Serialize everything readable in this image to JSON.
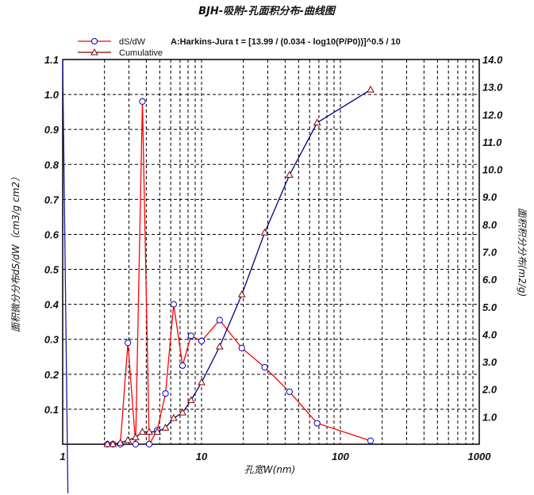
{
  "chart_data": {
    "type": "line",
    "title": "BJH-吸附-孔面积分布-曲线图",
    "annotation": "A:Harkins-Jura  t = [13.99 / (0.034 - log10(P/P0))]^0.5 / 10",
    "xlabel": "孔宽W(nm)",
    "ylabel_left": "面积微分分布dS/dW（cm3/g cm2）",
    "ylabel_right": "面积积分分布(m2/g)",
    "x_scale": "log",
    "xlim": [
      1,
      1000
    ],
    "ylim_left": [
      0,
      1.1
    ],
    "ylim_right": [
      0,
      14
    ],
    "x_ticks": [
      "1",
      "10",
      "100",
      "1000"
    ],
    "y_ticks_left": [
      "0.1",
      "0.2",
      "0.3",
      "0.4",
      "0.5",
      "0.6",
      "0.7",
      "0.8",
      "0.9",
      "1.0",
      "1.1"
    ],
    "y_ticks_right": [
      "1.0",
      "2.0",
      "3.0",
      "4.0",
      "5.0",
      "6.0",
      "7.0",
      "8.0",
      "9.0",
      "10.0",
      "11.0",
      "12.0",
      "13.0",
      "14.0"
    ],
    "grid": true,
    "legend_position": "top-left",
    "series": [
      {
        "name": "dS/dW",
        "axis": "left",
        "color": "#ff0000",
        "marker": "circle",
        "x": [
          2.1,
          2.3,
          2.6,
          2.95,
          3.35,
          3.75,
          4.2,
          4.8,
          5.5,
          6.3,
          7.3,
          8.4,
          10.0,
          13.5,
          19.5,
          28.5,
          43.0,
          68.0,
          165.0
        ],
        "y": [
          0.0,
          0.0,
          0.0,
          0.29,
          0.0,
          0.98,
          0.0,
          0.04,
          0.145,
          0.4,
          0.225,
          0.31,
          0.295,
          0.355,
          0.275,
          0.22,
          0.15,
          0.06,
          0.01
        ]
      },
      {
        "name": "Cumulative",
        "axis": "right",
        "color": "#000080",
        "marker": "triangle",
        "x": [
          2.1,
          2.3,
          2.6,
          2.95,
          3.35,
          3.75,
          4.2,
          4.8,
          5.5,
          6.3,
          7.3,
          8.4,
          10.0,
          13.5,
          19.5,
          28.5,
          43.0,
          68.0,
          165.0
        ],
        "y": [
          0.0,
          0.0,
          0.05,
          0.15,
          0.25,
          0.45,
          0.45,
          0.45,
          0.6,
          0.95,
          1.15,
          1.6,
          2.25,
          3.55,
          5.45,
          7.7,
          9.8,
          11.7,
          12.9
        ]
      },
      {
        "name": "",
        "axis": "left",
        "color": "#1a1aa8",
        "marker": "none",
        "x": [
          1.0,
          1.0905
        ],
        "y": [
          1.1,
          -0.14
        ]
      }
    ]
  }
}
